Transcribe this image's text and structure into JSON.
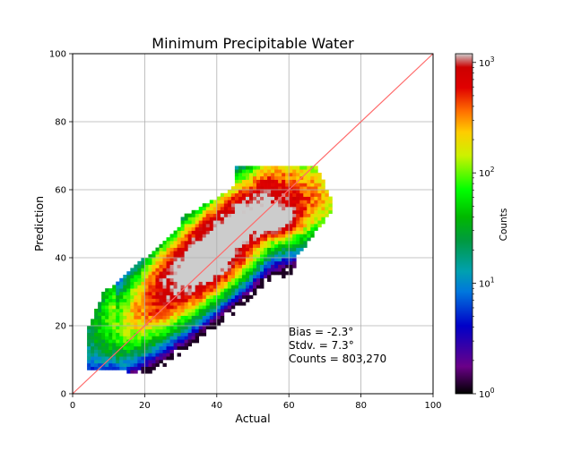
{
  "chart_data": {
    "type": "heatmap",
    "title": "Minimum Precipitable Water",
    "xlabel": "Actual",
    "ylabel": "Prediction",
    "xlim": [
      0,
      100
    ],
    "ylim": [
      0,
      100
    ],
    "xticks": [
      "0",
      "20",
      "40",
      "60",
      "80",
      "100"
    ],
    "yticks": [
      "0",
      "20",
      "40",
      "60",
      "80",
      "100"
    ],
    "grid": true,
    "scale": "log",
    "reference_line": {
      "x": [
        0,
        100
      ],
      "y": [
        0,
        100
      ],
      "color": "#ff6a6a"
    },
    "colorbar": {
      "label": "Counts",
      "scale": "log",
      "range": [
        1,
        1200
      ],
      "ticks": [
        {
          "base": "10",
          "exp": "0",
          "value": 1
        },
        {
          "base": "10",
          "exp": "1",
          "value": 10
        },
        {
          "base": "10",
          "exp": "2",
          "value": 100
        },
        {
          "base": "10",
          "exp": "3",
          "value": 1000
        }
      ],
      "colormap": "nipy_spectral-like"
    },
    "density_regions": [
      {
        "description": "outer envelope",
        "actual_range": [
          4,
          72
        ],
        "prediction_range": [
          7,
          66
        ],
        "count_level": 2
      },
      {
        "description": "main band",
        "actual_range": [
          6,
          68
        ],
        "prediction_range": [
          12,
          62
        ],
        "count_level": 50
      },
      {
        "description": "core",
        "actual_range": [
          20,
          60
        ],
        "prediction_range": [
          25,
          55
        ],
        "count_level": 200
      },
      {
        "description": "peak",
        "center": [
          57,
          50
        ],
        "count_level": 1000
      }
    ],
    "annotations": [
      "Bias = -2.3°",
      "Stdv. = 7.3°",
      "Counts = 803,270"
    ]
  },
  "colors": {
    "grid": "#b0b0b0",
    "reference_line": "#ff6a6a"
  }
}
